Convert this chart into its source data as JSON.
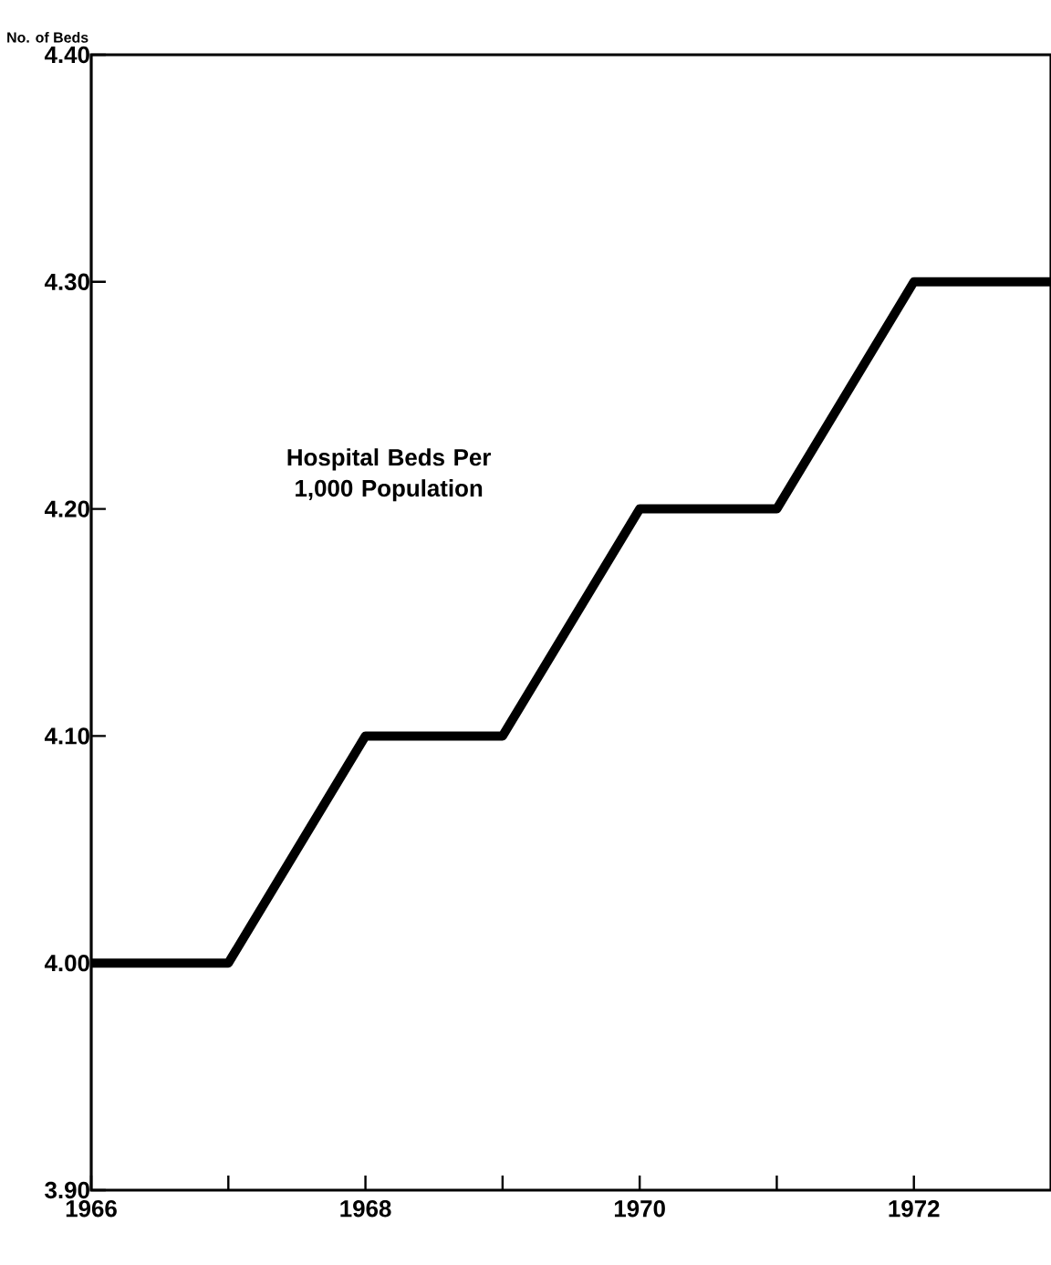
{
  "chart_data": {
    "type": "line",
    "title": "Hospital Beds Per 1,000 Population",
    "ylabel": "No. of Beds",
    "x": [
      1966,
      1967,
      1968,
      1969,
      1970,
      1971,
      1972,
      1973
    ],
    "values": [
      4.0,
      4.0,
      4.1,
      4.1,
      4.2,
      4.2,
      4.3,
      4.3
    ],
    "color": "#000000",
    "xlim": [
      1966,
      1973
    ],
    "ylim": [
      3.9,
      4.4
    ],
    "xticks": [
      1966,
      {
        "value": 1967,
        "label": null
      },
      1968,
      {
        "value": 1969,
        "label": null
      },
      1970,
      {
        "value": 1971,
        "label": null
      },
      1972
    ],
    "yticks": [
      {
        "value": 3.9,
        "label": "3.90"
      },
      {
        "value": 4.0,
        "label": "4.00"
      },
      {
        "value": 4.1,
        "label": "4.10"
      },
      {
        "value": 4.2,
        "label": "4.20"
      },
      {
        "value": 4.3,
        "label": "4.30"
      },
      {
        "value": 4.4,
        "label": "4.40"
      }
    ]
  }
}
